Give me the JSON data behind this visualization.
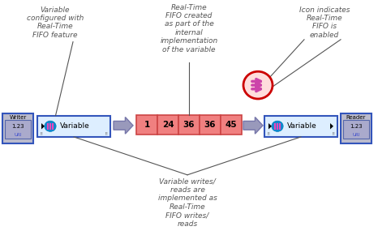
{
  "bg_color": "#ffffff",
  "annotation_color": "#555555",
  "fifo_values": [
    "1",
    "24",
    "36",
    "36",
    "45"
  ],
  "fifo_cell_color": "#f08080",
  "fifo_border_color": "#cc4444",
  "arrow_facecolor": "#9999bb",
  "arrow_edgecolor": "#7777aa",
  "variable_box_edgecolor": "#3355bb",
  "variable_box_facecolor": "#ddeeff",
  "writer_box_edgecolor": "#3355bb",
  "writer_box_facecolor": "#bbbbcc",
  "reader_box_edgecolor": "#3355bb",
  "reader_box_facecolor": "#bbbbcc",
  "numeric_box_facecolor": "#aaaacc",
  "numeric_box_edgecolor": "#5566aa",
  "line_color": "#444444",
  "circle_facecolor": "#ffdddd",
  "circle_edgecolor": "#cc0000",
  "icon_color": "#cc44aa",
  "annot_color": "#555555",
  "annot_fs": 6.5,
  "annot1": "Variable\nconfigured with\nReal-Time\nFIFO feature",
  "annot2": "Real-Time\nFIFO created\nas part of the\ninternal\nimplementation\nof the variable",
  "annot3": "Icon indicates\nReal-Time\nFIFO is\nenabled",
  "annot4": "Variable writes/\nreads are\nimplemented as\nReal-Time\nFIFO writes/\nreads"
}
